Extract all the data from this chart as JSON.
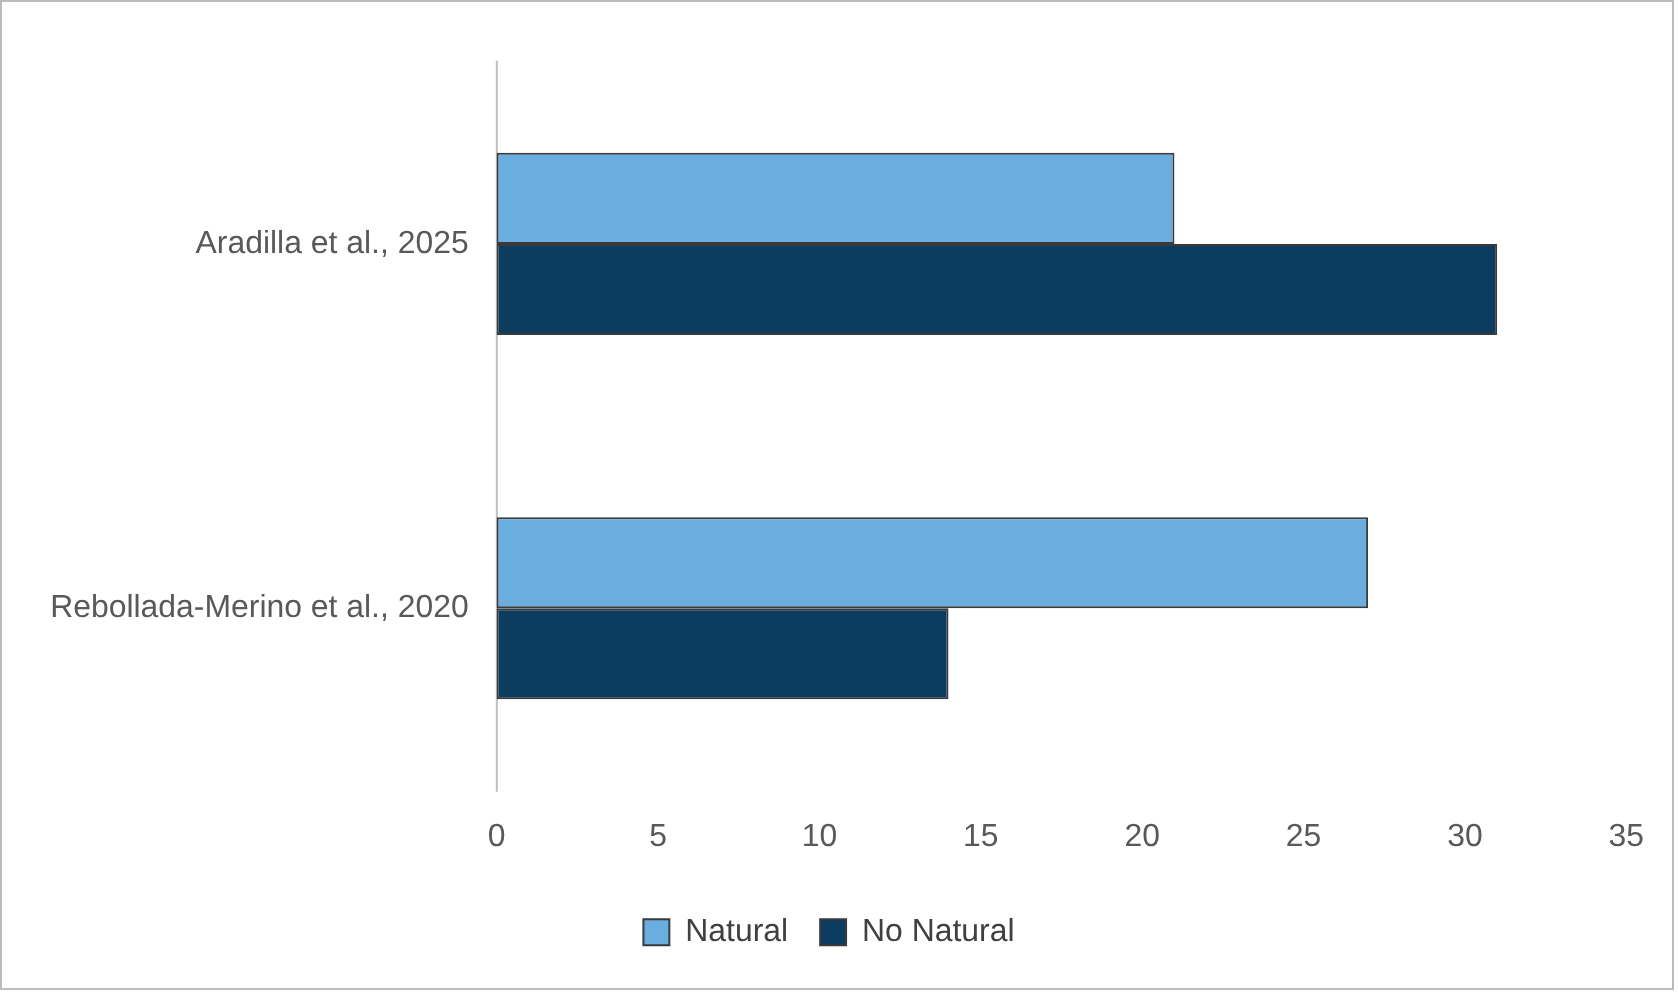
{
  "chart_data": {
    "type": "bar",
    "orientation": "horizontal",
    "categories": [
      "Aradilla et al., 2025",
      "Rebollada-Merino et al., 2020"
    ],
    "series": [
      {
        "name": "Natural",
        "color": "#6aaee0",
        "values": [
          21,
          27
        ]
      },
      {
        "name": "No Natural",
        "color": "#0c3c60",
        "values": [
          31,
          14
        ]
      }
    ],
    "xlim": [
      0,
      35
    ],
    "xticks": [
      0,
      5,
      10,
      15,
      20,
      25,
      30,
      35
    ],
    "grid": false,
    "legend": "bottom"
  }
}
